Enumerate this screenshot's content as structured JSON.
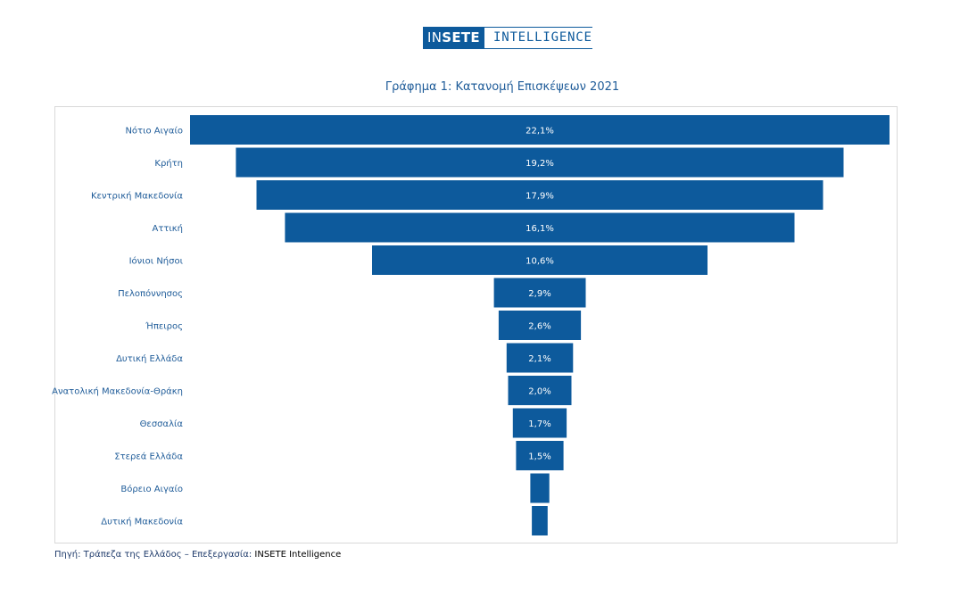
{
  "logo": {
    "box_prefix": "IN",
    "box_bold": "SETE",
    "text": "INTELLIGENCE"
  },
  "source": {
    "prefix": "Πηγή: Τράπεζα της Ελλάδος – Επεξεργασία: ",
    "brand": "INSETE Intelligence"
  },
  "colors": {
    "bar": "#0d5a9c",
    "label": "#1f5c99",
    "value_text": "#ffffff"
  },
  "chart_data": {
    "type": "bar",
    "orientation": "horizontal-funnel",
    "title": "Γράφημα 1: Κατανομή Επισκέψεων 2021",
    "categories": [
      "Νότιο Αιγαίο",
      "Κρήτη",
      "Κεντρική Μακεδονία",
      "Αττική",
      "Ιόνιοι Νήσοι",
      "Πελοπόννησος",
      "Ήπειρος",
      "Δυτική Ελλάδα",
      "Ανατολική Μακεδονία-Θράκη",
      "Θεσσαλία",
      "Στερεά Ελλάδα",
      "Βόρειο Αιγαίο",
      "Δυτική Μακεδονία"
    ],
    "values": [
      22.1,
      19.2,
      17.9,
      16.1,
      10.6,
      2.9,
      2.6,
      2.1,
      2.0,
      1.7,
      1.5,
      0.6,
      0.5
    ],
    "labels": [
      "22,1%",
      "19,2%",
      "17,9%",
      "16,1%",
      "10,6%",
      "2,9%",
      "2,6%",
      "2,1%",
      "2,0%",
      "1,7%",
      "1,5%",
      "",
      ""
    ]
  }
}
